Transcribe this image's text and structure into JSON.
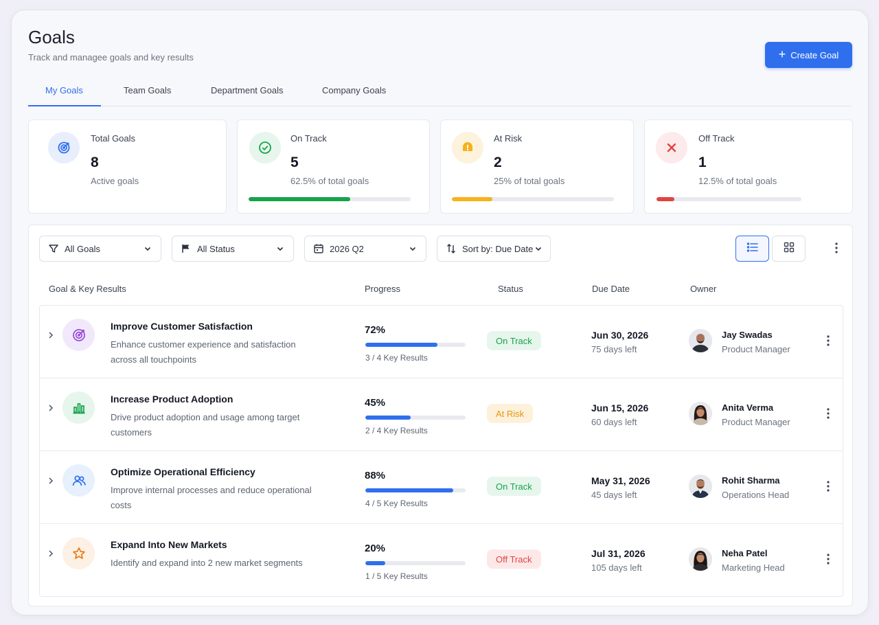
{
  "header": {
    "title": "Goals",
    "subtitle": "Track and managee goals and key results",
    "create_label": "Create Goal"
  },
  "tabs": [
    {
      "label": "My Goals",
      "active": true
    },
    {
      "label": "Team Goals",
      "active": false
    },
    {
      "label": "Department Goals",
      "active": false
    },
    {
      "label": "Company Goals",
      "active": false
    }
  ],
  "stats": [
    {
      "label": "Total Goals",
      "value": "8",
      "sub": "Active goals",
      "icon": "target-icon",
      "color": "#2f6fed"
    },
    {
      "label": "On Track",
      "value": "5",
      "sub": "62.5% of total goals",
      "icon": "check-circle-icon",
      "color": "#16a34a",
      "progress": 0.625
    },
    {
      "label": "At Risk",
      "value": "2",
      "sub": "25% of total goals",
      "icon": "warning-icon",
      "color": "#f5b21a",
      "progress": 0.25
    },
    {
      "label": "Off Track",
      "value": "1",
      "sub": "12.5% of total goals",
      "icon": "x-icon",
      "color": "#e04444",
      "progress": 0.125
    }
  ],
  "filters": {
    "goals": "All Goals",
    "status": "All Status",
    "period": "2026 Q2",
    "sort": "Sort by: Due Date"
  },
  "columns": [
    "Goal & Key Results",
    "Progress",
    "Status",
    "Due Date",
    "Owner"
  ],
  "goals": [
    {
      "title": "Improve Customer Satisfaction",
      "description": "Enhance customer experience and satisfaction across all touchpoints",
      "icon": "target-icon",
      "progress_label": "72%",
      "progress": 0.72,
      "key_results": "3 / 4 Key Results",
      "status": "On Track",
      "due_date": "Jun 30, 2026",
      "days_left": "75 days left",
      "owner": "Jay Swadas",
      "role": "Product Manager"
    },
    {
      "title": "Increase Product Adoption",
      "description": "Drive product adoption and usage among target customers",
      "icon": "bar-chart-icon",
      "progress_label": "45%",
      "progress": 0.45,
      "key_results": "2 / 4 Key Results",
      "status": "At Risk",
      "due_date": "Jun 15, 2026",
      "days_left": "60 days left",
      "owner": "Anita Verma",
      "role": "Product Manager"
    },
    {
      "title": "Optimize Operational Efficiency",
      "description": "Improve internal processes and reduce operational costs",
      "icon": "users-icon",
      "progress_label": "88%",
      "progress": 0.88,
      "key_results": "4 / 5 Key Results",
      "status": "On Track",
      "due_date": "May 31, 2026",
      "days_left": "45 days left",
      "owner": "Rohit Sharma",
      "role": "Operations Head"
    },
    {
      "title": "Expand Into New Markets",
      "description": "Identify and expand into 2 new market segments",
      "icon": "star-icon",
      "progress_label": "20%",
      "progress": 0.2,
      "key_results": "1 / 5 Key Results",
      "status": "Off Track",
      "due_date": "Jul 31, 2026",
      "days_left": "105 days left",
      "owner": "Neha Patel",
      "role": "Marketing Head"
    }
  ],
  "colors": {
    "accent": "#2f6fed",
    "on_track": "#16a34a",
    "at_risk": "#f5b21a",
    "off_track": "#e04444"
  }
}
